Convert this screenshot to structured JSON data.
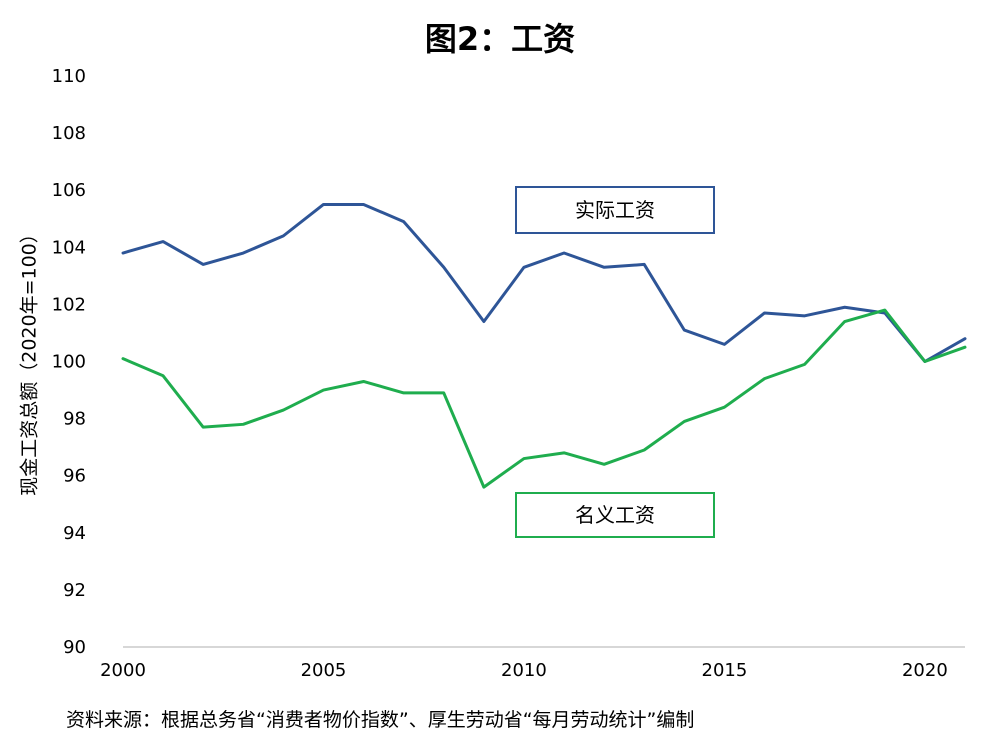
{
  "title": "图2：工资",
  "source": "资料来源：根据总务省“消费者物价指数”、厚生劳动省“每月劳动统计”编制",
  "chart_data": {
    "type": "line",
    "ylabel": "现金工资总额（2020年=100）",
    "xlabel": "",
    "ylim": [
      90,
      110
    ],
    "xlim": [
      2000,
      2021
    ],
    "yticks": [
      90,
      92,
      94,
      96,
      98,
      100,
      102,
      104,
      106,
      108,
      110
    ],
    "xticks": [
      2000,
      2005,
      2010,
      2015,
      2020
    ],
    "grid": false,
    "x": [
      2000,
      2001,
      2002,
      2003,
      2004,
      2005,
      2006,
      2007,
      2008,
      2009,
      2010,
      2011,
      2012,
      2013,
      2014,
      2015,
      2016,
      2017,
      2018,
      2019,
      2020,
      2021
    ],
    "series": [
      {
        "name": "实际工资",
        "color": "#2e5597",
        "values": [
          103.8,
          104.2,
          103.4,
          103.8,
          104.4,
          105.5,
          105.5,
          104.9,
          103.3,
          101.4,
          103.3,
          103.8,
          103.3,
          103.4,
          101.1,
          100.6,
          101.7,
          101.6,
          101.9,
          101.7,
          100.0,
          100.8
        ]
      },
      {
        "name": "名义工资",
        "color": "#1fad4e",
        "values": [
          100.1,
          99.5,
          97.7,
          97.8,
          98.3,
          99.0,
          99.3,
          98.9,
          98.9,
          95.6,
          96.6,
          96.8,
          96.4,
          96.9,
          97.9,
          98.4,
          99.4,
          99.9,
          101.4,
          101.8,
          100.0,
          100.5
        ]
      }
    ]
  }
}
